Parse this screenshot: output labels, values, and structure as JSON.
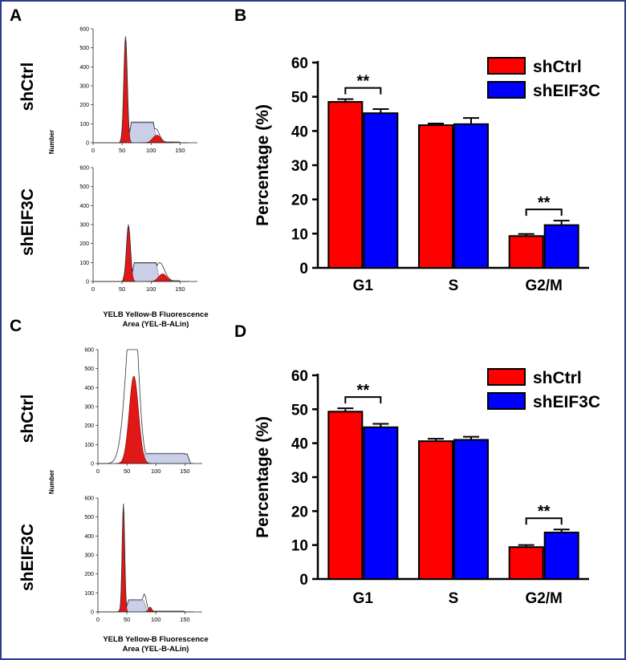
{
  "flow_panels": [
    {
      "letter": "A",
      "ylabel": "Number",
      "xlabel_line1": "YELB Yellow-B Fluorescence",
      "xlabel_line2": "Area (YEL-B-ALin)",
      "histograms": [
        {
          "sample": "shCtrl",
          "x_ticks": [
            "0",
            "50",
            "100",
            "150"
          ],
          "y_ticks": [
            "0",
            "100",
            "200",
            "300",
            "400",
            "500",
            "600"
          ],
          "ymax": 600
        },
        {
          "sample": "shEIF3C",
          "x_ticks": [
            "0",
            "50",
            "100",
            "150"
          ],
          "y_ticks": [
            "0",
            "100",
            "200",
            "300",
            "400",
            "500",
            "600"
          ],
          "ymax": 600
        }
      ]
    },
    {
      "letter": "C",
      "ylabel": "Number",
      "xlabel_line1": "YELB Yellow-B Fluorescence",
      "xlabel_line2": "Area (YEL-B-ALin)",
      "histograms": [
        {
          "sample": "shCtrl",
          "x_ticks": [
            "0",
            "50",
            "100",
            "150"
          ],
          "y_ticks": [
            "0",
            "100",
            "200",
            "300",
            "400",
            "500",
            "600"
          ],
          "ymax": 600
        },
        {
          "sample": "shEIF3C",
          "x_ticks": [
            "0",
            "50",
            "100",
            "150"
          ],
          "y_ticks": [
            "0",
            "100",
            "200",
            "300",
            "400",
            "500",
            "600"
          ],
          "ymax": 600
        }
      ]
    }
  ],
  "chart_data": [
    {
      "panel": "B",
      "type": "bar",
      "categories": [
        "G1",
        "S",
        "G2/M"
      ],
      "series": [
        {
          "name": "shCtrl",
          "color": "#ff0000",
          "values": [
            48.5,
            41.7,
            9.3
          ],
          "errors": [
            0.8,
            0.5,
            0.6
          ]
        },
        {
          "name": "shEIF3C",
          "color": "#0000ff",
          "values": [
            45.2,
            42.0,
            12.5
          ],
          "errors": [
            1.2,
            1.8,
            1.3
          ]
        }
      ],
      "ylabel": "Percentage (%)",
      "ylim": [
        0,
        60
      ],
      "y_ticks": [
        "0",
        "10",
        "20",
        "30",
        "40",
        "50",
        "60"
      ],
      "annotations": [
        {
          "text": "**",
          "category": "G1"
        },
        {
          "text": "**",
          "category": "G2/M"
        }
      ],
      "legend_position": "top-right"
    },
    {
      "panel": "D",
      "type": "bar",
      "categories": [
        "G1",
        "S",
        "G2/M"
      ],
      "series": [
        {
          "name": "shCtrl",
          "color": "#ff0000",
          "values": [
            49.3,
            40.6,
            9.4
          ],
          "errors": [
            1.0,
            0.7,
            0.6
          ]
        },
        {
          "name": "shEIF3C",
          "color": "#0000ff",
          "values": [
            44.7,
            41.0,
            13.7
          ],
          "errors": [
            1.0,
            0.9,
            0.9
          ]
        }
      ],
      "ylabel": "Percentage (%)",
      "ylim": [
        0,
        60
      ],
      "y_ticks": [
        "0",
        "10",
        "20",
        "30",
        "40",
        "50",
        "60"
      ],
      "annotations": [
        {
          "text": "**",
          "category": "G1"
        },
        {
          "text": "**",
          "category": "G2/M"
        }
      ],
      "legend_position": "top-right"
    }
  ]
}
